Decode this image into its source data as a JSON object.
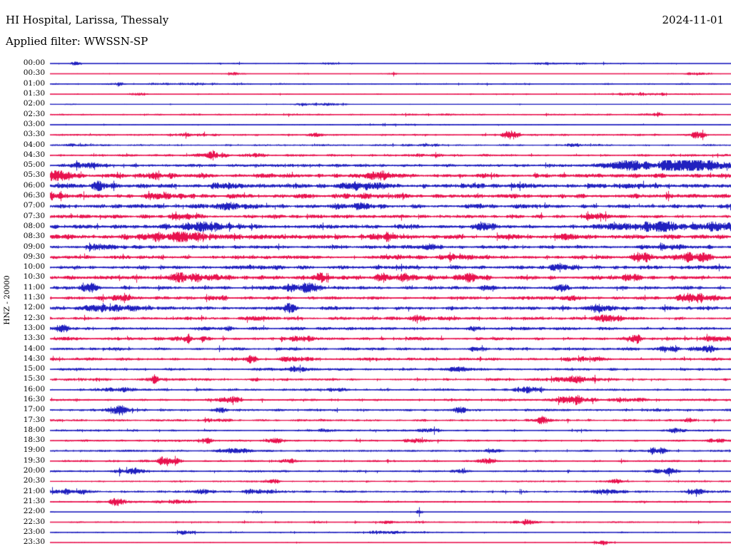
{
  "chart_data": {
    "type": "helicorder",
    "title": "HI Hospital, Larissa, Thessaly",
    "date": "2024-11-01",
    "filter_label": "Applied filter: WWSSN-SP",
    "channel_scale_label": "HNZ - 20000",
    "row_interval_minutes": 30,
    "rows_per_day": 48,
    "trace_colors": {
      "blue": "#2020bf",
      "red": "#e8124e"
    },
    "rows": [
      {
        "time": "00:00",
        "color": "blue",
        "base": 0.45,
        "bursts": [
          [
            0.037,
            0.006,
            2.0
          ],
          [
            0.25,
            0.02,
            0.6
          ],
          [
            0.4,
            0.04,
            0.7
          ],
          [
            0.75,
            0.08,
            0.7
          ]
        ]
      },
      {
        "time": "00:30",
        "color": "red",
        "base": 0.35,
        "bursts": [
          [
            0.27,
            0.01,
            1.2
          ],
          [
            0.37,
            0.006,
            1.0
          ],
          [
            0.5,
            0.008,
            1.2
          ],
          [
            0.95,
            0.02,
            1.0
          ]
        ]
      },
      {
        "time": "01:00",
        "color": "blue",
        "base": 0.8,
        "bursts": [
          [
            0.1,
            0.006,
            1.4
          ],
          [
            0.19,
            0.03,
            0.9
          ]
        ]
      },
      {
        "time": "01:30",
        "color": "red",
        "base": 0.6,
        "bursts": [
          [
            0.13,
            0.008,
            1.9
          ],
          [
            0.88,
            0.04,
            1.5
          ]
        ]
      },
      {
        "time": "02:00",
        "color": "blue",
        "base": 0.45,
        "bursts": [
          [
            0.028,
            0.005,
            1.6
          ],
          [
            0.39,
            0.03,
            1.3
          ]
        ]
      },
      {
        "time": "02:30",
        "color": "red",
        "base": 0.9,
        "bursts": [
          [
            0.89,
            0.008,
            1.8
          ]
        ]
      },
      {
        "time": "03:00",
        "color": "blue",
        "base": 0.6,
        "bursts": [
          [
            0.5,
            0.1,
            0.4
          ]
        ]
      },
      {
        "time": "03:30",
        "color": "red",
        "base": 1.0,
        "bursts": [
          [
            0.21,
            0.015,
            1.8
          ],
          [
            0.39,
            0.008,
            1.8
          ],
          [
            0.675,
            0.009,
            4.5
          ],
          [
            0.95,
            0.008,
            3.8
          ]
        ]
      },
      {
        "time": "04:00",
        "color": "blue",
        "base": 0.9,
        "bursts": [
          [
            0.04,
            0.008,
            1.8
          ],
          [
            0.55,
            0.015,
            1.4
          ],
          [
            0.78,
            0.015,
            1.6
          ]
        ]
      },
      {
        "time": "04:30",
        "color": "red",
        "base": 1.2,
        "bursts": [
          [
            0.24,
            0.012,
            3.0
          ],
          [
            0.31,
            0.015,
            1.8
          ],
          [
            0.55,
            0.015,
            1.4
          ]
        ]
      },
      {
        "time": "05:00",
        "color": "blue",
        "base": 1.5,
        "bursts": [
          [
            0.05,
            0.015,
            2.2
          ],
          [
            0.87,
            0.05,
            4.5
          ],
          [
            0.95,
            0.03,
            6.0
          ]
        ]
      },
      {
        "time": "05:30",
        "color": "red",
        "base": 2.2,
        "bursts": [
          [
            0.005,
            0.02,
            3.8
          ],
          [
            0.17,
            0.015,
            2.2
          ],
          [
            0.48,
            0.015,
            3.2
          ]
        ]
      },
      {
        "time": "06:00",
        "color": "blue",
        "base": 2.2,
        "bursts": [
          [
            0.07,
            0.015,
            2.8
          ],
          [
            0.25,
            0.015,
            2.2
          ],
          [
            0.46,
            0.02,
            2.8
          ]
        ]
      },
      {
        "time": "06:30",
        "color": "red",
        "base": 2.2,
        "bursts": [
          [
            0.0,
            0.015,
            3.2
          ],
          [
            0.17,
            0.015,
            2.2
          ],
          [
            0.45,
            0.015,
            2.2
          ]
        ]
      },
      {
        "time": "07:00",
        "color": "blue",
        "base": 2.0,
        "bursts": [
          [
            0.26,
            0.015,
            2.8
          ],
          [
            0.45,
            0.02,
            3.0
          ],
          [
            0.62,
            0.015,
            2.2
          ]
        ]
      },
      {
        "time": "07:30",
        "color": "red",
        "base": 1.8,
        "bursts": [
          [
            0.2,
            0.015,
            2.0
          ],
          [
            0.8,
            0.015,
            2.2
          ]
        ]
      },
      {
        "time": "08:00",
        "color": "blue",
        "base": 2.0,
        "bursts": [
          [
            0.22,
            0.03,
            4.2
          ],
          [
            0.64,
            0.008,
            4.8
          ],
          [
            0.88,
            0.04,
            4.2
          ],
          [
            0.98,
            0.02,
            3.8
          ]
        ]
      },
      {
        "time": "08:30",
        "color": "red",
        "base": 2.2,
        "bursts": [
          [
            0.19,
            0.035,
            3.8
          ],
          [
            0.5,
            0.02,
            3.2
          ],
          [
            0.77,
            0.015,
            2.2
          ]
        ]
      },
      {
        "time": "09:00",
        "color": "blue",
        "base": 1.8,
        "bursts": [
          [
            0.08,
            0.015,
            2.2
          ],
          [
            0.55,
            0.015,
            2.2
          ],
          [
            0.9,
            0.02,
            1.8
          ]
        ]
      },
      {
        "time": "09:30",
        "color": "red",
        "base": 1.8,
        "bursts": [
          [
            0.52,
            0.015,
            2.2
          ],
          [
            0.6,
            0.02,
            3.2
          ],
          [
            0.87,
            0.015,
            2.8
          ],
          [
            0.94,
            0.025,
            5.8
          ]
        ]
      },
      {
        "time": "10:00",
        "color": "blue",
        "base": 1.8,
        "bursts": [
          [
            0.3,
            0.02,
            2.2
          ],
          [
            0.75,
            0.015,
            2.2
          ]
        ]
      },
      {
        "time": "10:30",
        "color": "red",
        "base": 2.0,
        "bursts": [
          [
            0.21,
            0.03,
            4.2
          ],
          [
            0.4,
            0.01,
            3.4
          ],
          [
            0.52,
            0.03,
            3.4
          ],
          [
            0.62,
            0.015,
            3.0
          ],
          [
            0.85,
            0.012,
            2.4
          ]
        ]
      },
      {
        "time": "11:00",
        "color": "blue",
        "base": 1.6,
        "bursts": [
          [
            0.06,
            0.015,
            2.8
          ],
          [
            0.37,
            0.02,
            3.8
          ],
          [
            0.64,
            0.007,
            4.2
          ],
          [
            0.75,
            0.006,
            3.4
          ],
          [
            0.94,
            0.005,
            3.0
          ]
        ]
      },
      {
        "time": "11:30",
        "color": "red",
        "base": 1.6,
        "bursts": [
          [
            0.1,
            0.015,
            2.2
          ],
          [
            0.24,
            0.015,
            2.2
          ],
          [
            0.76,
            0.01,
            2.4
          ],
          [
            0.95,
            0.022,
            4.6
          ]
        ]
      },
      {
        "time": "12:00",
        "color": "blue",
        "base": 1.9,
        "bursts": [
          [
            0.09,
            0.025,
            3.2
          ],
          [
            0.35,
            0.008,
            2.8
          ],
          [
            0.8,
            0.02,
            2.2
          ]
        ]
      },
      {
        "time": "12:30",
        "color": "red",
        "base": 1.5,
        "bursts": [
          [
            0.3,
            0.01,
            2.8
          ],
          [
            0.55,
            0.015,
            2.8
          ],
          [
            0.82,
            0.02,
            2.4
          ]
        ]
      },
      {
        "time": "13:00",
        "color": "blue",
        "base": 1.5,
        "bursts": [
          [
            0.02,
            0.008,
            2.8
          ],
          [
            0.25,
            0.015,
            2.2
          ],
          [
            0.62,
            0.007,
            3.8
          ]
        ]
      },
      {
        "time": "13:30",
        "color": "red",
        "base": 1.5,
        "bursts": [
          [
            0.2,
            0.02,
            2.8
          ],
          [
            0.37,
            0.015,
            2.5
          ],
          [
            0.86,
            0.007,
            4.2
          ],
          [
            0.98,
            0.015,
            3.2
          ]
        ]
      },
      {
        "time": "14:00",
        "color": "blue",
        "base": 1.4,
        "bursts": [
          [
            0.63,
            0.008,
            2.8
          ],
          [
            0.91,
            0.009,
            3.8
          ],
          [
            0.96,
            0.015,
            2.8
          ]
        ]
      },
      {
        "time": "14:30",
        "color": "red",
        "base": 1.4,
        "bursts": [
          [
            0.29,
            0.008,
            3.2
          ],
          [
            0.36,
            0.015,
            2.2
          ],
          [
            0.78,
            0.015,
            2.2
          ]
        ]
      },
      {
        "time": "15:00",
        "color": "blue",
        "base": 1.3,
        "bursts": [
          [
            0.35,
            0.015,
            2.2
          ],
          [
            0.6,
            0.008,
            3.2
          ]
        ]
      },
      {
        "time": "15:30",
        "color": "red",
        "base": 1.3,
        "bursts": [
          [
            0.15,
            0.008,
            3.2
          ],
          [
            0.3,
            0.008,
            2.2
          ],
          [
            0.78,
            0.025,
            2.8
          ]
        ]
      },
      {
        "time": "16:00",
        "color": "blue",
        "base": 1.2,
        "bursts": [
          [
            0.1,
            0.015,
            1.8
          ],
          [
            0.42,
            0.008,
            2.2
          ],
          [
            0.7,
            0.015,
            2.2
          ]
        ]
      },
      {
        "time": "16:30",
        "color": "red",
        "base": 1.2,
        "bursts": [
          [
            0.26,
            0.015,
            2.8
          ],
          [
            0.77,
            0.02,
            3.8
          ],
          [
            0.85,
            0.015,
            2.8
          ]
        ]
      },
      {
        "time": "17:00",
        "color": "blue",
        "base": 1.2,
        "bursts": [
          [
            0.1,
            0.015,
            2.8
          ],
          [
            0.25,
            0.008,
            2.8
          ],
          [
            0.6,
            0.012,
            2.2
          ],
          [
            0.88,
            0.012,
            2.2
          ]
        ]
      },
      {
        "time": "17:30",
        "color": "red",
        "base": 1.1,
        "bursts": [
          [
            0.25,
            0.015,
            2.2
          ],
          [
            0.72,
            0.012,
            2.8
          ],
          [
            0.93,
            0.008,
            2.2
          ]
        ]
      },
      {
        "time": "18:00",
        "color": "blue",
        "base": 1.0,
        "bursts": [
          [
            0.4,
            0.008,
            1.8
          ],
          [
            0.55,
            0.012,
            1.8
          ],
          [
            0.92,
            0.008,
            2.2
          ]
        ]
      },
      {
        "time": "18:30",
        "color": "red",
        "base": 1.0,
        "bursts": [
          [
            0.23,
            0.008,
            2.8
          ],
          [
            0.33,
            0.008,
            2.2
          ],
          [
            0.53,
            0.01,
            2.8
          ],
          [
            0.98,
            0.008,
            2.8
          ]
        ]
      },
      {
        "time": "19:00",
        "color": "blue",
        "base": 1.0,
        "bursts": [
          [
            0.27,
            0.015,
            3.2
          ],
          [
            0.65,
            0.008,
            2.8
          ],
          [
            0.89,
            0.01,
            3.8
          ]
        ]
      },
      {
        "time": "19:30",
        "color": "red",
        "base": 1.0,
        "bursts": [
          [
            0.17,
            0.015,
            3.2
          ],
          [
            0.35,
            0.008,
            2.2
          ],
          [
            0.64,
            0.008,
            2.2
          ]
        ]
      },
      {
        "time": "20:00",
        "color": "blue",
        "base": 1.0,
        "bursts": [
          [
            0.12,
            0.015,
            3.2
          ],
          [
            0.6,
            0.008,
            2.2
          ],
          [
            0.9,
            0.012,
            3.2
          ]
        ]
      },
      {
        "time": "20:30",
        "color": "red",
        "base": 0.8,
        "bursts": [
          [
            0.33,
            0.008,
            1.8
          ],
          [
            0.83,
            0.008,
            2.2
          ]
        ]
      },
      {
        "time": "21:00",
        "color": "blue",
        "base": 1.2,
        "bursts": [
          [
            0.02,
            0.02,
            3.2
          ],
          [
            0.23,
            0.008,
            3.8
          ],
          [
            0.3,
            0.015,
            2.2
          ],
          [
            0.82,
            0.015,
            2.8
          ],
          [
            0.95,
            0.012,
            2.8
          ]
        ]
      },
      {
        "time": "21:30",
        "color": "red",
        "base": 0.9,
        "bursts": [
          [
            0.1,
            0.012,
            3.8
          ],
          [
            0.18,
            0.015,
            2.2
          ]
        ]
      },
      {
        "time": "22:00",
        "color": "blue",
        "base": 0.5,
        "bursts": [
          [
            0.3,
            0.008,
            1.4
          ],
          [
            0.54,
            0.006,
            1.8
          ]
        ]
      },
      {
        "time": "22:30",
        "color": "red",
        "base": 0.8,
        "bursts": [
          [
            0.5,
            0.008,
            1.8
          ],
          [
            0.7,
            0.012,
            2.2
          ]
        ]
      },
      {
        "time": "23:00",
        "color": "blue",
        "base": 0.7,
        "bursts": [
          [
            0.2,
            0.012,
            1.6
          ],
          [
            0.5,
            0.04,
            1.0
          ]
        ]
      },
      {
        "time": "23:30",
        "color": "red",
        "base": 0.5,
        "bursts": [
          [
            0.81,
            0.008,
            2.8
          ]
        ]
      }
    ]
  }
}
